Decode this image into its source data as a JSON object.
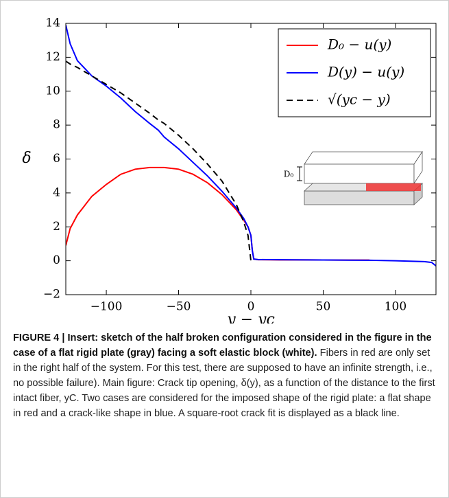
{
  "chart_data": {
    "type": "line",
    "xlabel": "y − yc",
    "ylabel": "δ",
    "x": [
      -128,
      -125,
      -120,
      -110,
      -100,
      -90,
      -80,
      -70,
      -64,
      -60,
      -50,
      -40,
      -30,
      -20,
      -10,
      -5,
      -2,
      0,
      1,
      2,
      5,
      20,
      40,
      60,
      82,
      100,
      120,
      125,
      128
    ],
    "series": [
      {
        "name": "D₀ − u(y)",
        "color": "#ff0000",
        "dash": false,
        "values": [
          0.9,
          1.9,
          2.7,
          3.8,
          4.5,
          5.1,
          5.4,
          5.5,
          5.5,
          5.5,
          5.4,
          5.1,
          4.6,
          3.9,
          3.0,
          2.4,
          2.0,
          1.5,
          0.6,
          0.1,
          0.06,
          0.05,
          0.05,
          0.04,
          0.04,
          null,
          null,
          null,
          null
        ]
      },
      {
        "name": "D(y) − u(y)",
        "color": "#0000ff",
        "dash": false,
        "values": [
          13.9,
          12.8,
          11.8,
          10.9,
          10.3,
          9.6,
          8.8,
          8.1,
          7.7,
          7.3,
          6.6,
          5.8,
          5.0,
          4.1,
          3.1,
          2.5,
          2.0,
          1.5,
          0.6,
          0.1,
          0.07,
          0.06,
          0.05,
          0.04,
          0.03,
          0.0,
          -0.05,
          -0.1,
          -0.3
        ]
      },
      {
        "name": "√(yc − y)",
        "color": "#000000",
        "dash": true,
        "values": [
          11.77,
          11.6,
          11.4,
          10.9,
          10.4,
          9.9,
          9.3,
          8.7,
          8.3,
          8.1,
          7.4,
          6.6,
          5.7,
          4.7,
          3.3,
          2.3,
          1.5,
          0,
          null,
          null,
          null,
          null,
          null,
          null,
          null,
          null,
          null,
          null,
          null
        ]
      }
    ],
    "xlim": [
      -128,
      128
    ],
    "xticks": [
      {
        "value": -100,
        "label": "−100"
      },
      {
        "value": -50,
        "label": "−50"
      },
      0,
      50,
      100
    ],
    "ylim": [
      -2,
      14
    ],
    "yticks": [
      {
        "value": -2,
        "label": "−2"
      },
      0,
      2,
      4,
      6,
      8,
      10,
      12,
      14
    ],
    "legend": "upper right",
    "inset_label": "D₀"
  },
  "caption": {
    "bold": "FIGURE 4 | Insert: sketch of the half broken configuration considered in the figure in the case of a flat rigid plate (gray) facing a soft elastic block (white).",
    "text": "Fibers in red are only set in the right half of the system. For this test, there are supposed to have an infinite strength, i.e., no possible failure). Main figure: Crack tip opening, δ(y), as a function of the distance to the first intact fiber, yC. Two cases are considered for the imposed shape of the rigid plate: a flat shape in red and a crack-like shape in blue. A square-root crack fit is displayed as a black line."
  }
}
